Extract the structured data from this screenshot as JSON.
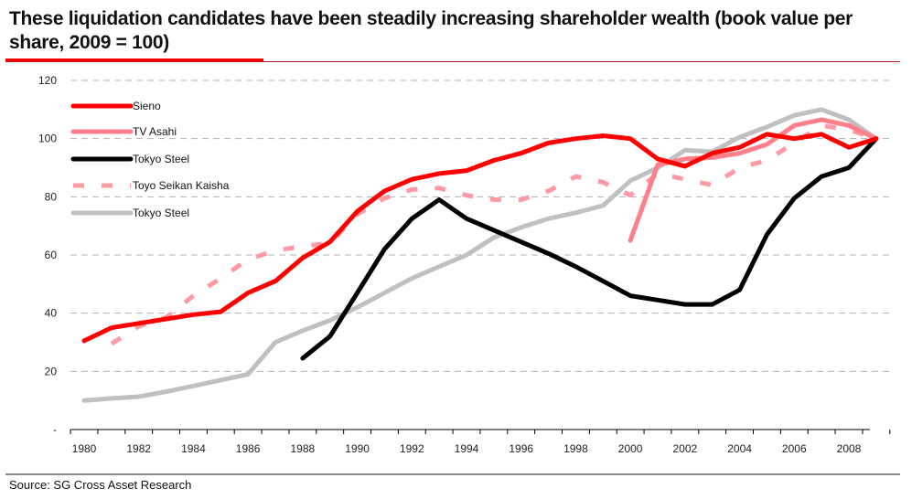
{
  "title": "These liquidation candidates have been steadily increasing shareholder wealth (book value per share, 2009 = 100)",
  "source": "Source: SG Cross Asset Research",
  "chart_data": {
    "type": "line",
    "title": "These liquidation candidates have been steadily increasing shareholder wealth (book value per share, 2009 = 100)",
    "xlabel": "",
    "ylabel": "",
    "xlim": [
      1979.5,
      2009.5
    ],
    "ylim": [
      0,
      120
    ],
    "grid": true,
    "legend_position": "top-left",
    "x_ticks": [
      1980,
      1982,
      1984,
      1986,
      1988,
      1990,
      1992,
      1994,
      1996,
      1998,
      2000,
      2002,
      2004,
      2006,
      2008
    ],
    "x_tick_labels": [
      "1980",
      "1982",
      "1984",
      "1986",
      "1988",
      "1990",
      "1992",
      "1994",
      "1996",
      "1998",
      "2000",
      "2002",
      "2004",
      "2006",
      "2008"
    ],
    "y_ticks": [
      0,
      20,
      40,
      60,
      80,
      100,
      120
    ],
    "y_tick_labels": [
      "-",
      "20",
      "40",
      "60",
      "80",
      "100",
      "120"
    ],
    "series": [
      {
        "name": "Sieno",
        "color": "#ff0000",
        "style": "solid",
        "x": [
          1980,
          1981,
          1982,
          1983,
          1984,
          1985,
          1986,
          1987,
          1988,
          1989,
          1990,
          1991,
          1992,
          1993,
          1994,
          1995,
          1996,
          1997,
          1998,
          1999,
          2000,
          2001,
          2002,
          2003,
          2004,
          2005,
          2006,
          2007,
          2008,
          2009
        ],
        "values": [
          30.5,
          35,
          36.5,
          38,
          39.5,
          40.5,
          47,
          51,
          59,
          64.5,
          75,
          82,
          86,
          88,
          89,
          92.5,
          95,
          98.5,
          100,
          101,
          100,
          93,
          90.5,
          95,
          97,
          101.5,
          100,
          101.5,
          97,
          100
        ]
      },
      {
        "name": "TV Asahi",
        "color": "#ff7f8a",
        "style": "solid",
        "x": [
          2000,
          2001,
          2002,
          2003,
          2004,
          2005,
          2006,
          2007,
          2008,
          2009
        ],
        "values": [
          65,
          91,
          93,
          93.5,
          95,
          98,
          104.5,
          106.5,
          104.5,
          100
        ]
      },
      {
        "name": "Tokyo Steel",
        "color": "#000000",
        "style": "solid",
        "x": [
          1988,
          1989,
          1990,
          1991,
          1992,
          1993,
          1994,
          1995,
          1996,
          1997,
          1998,
          1999,
          2000,
          2001,
          2002,
          2003,
          2004,
          2005,
          2006,
          2007,
          2008,
          2009
        ],
        "values": [
          24.5,
          32,
          47,
          62,
          72.5,
          79,
          72.5,
          68.5,
          64.5,
          60.5,
          56,
          51,
          46,
          44.5,
          43,
          43,
          48,
          67,
          79.5,
          87,
          90,
          100
        ]
      },
      {
        "name": "Toyo Seikan Kaisha",
        "color": "#ff9aa2",
        "style": "dashed",
        "x": [
          1981,
          1982,
          1983,
          1984,
          1985,
          1986,
          1987,
          1988,
          1989,
          1990,
          1991,
          1992,
          1993,
          1994,
          1995,
          1996,
          1997,
          1998,
          1999,
          2000,
          2001,
          2002,
          2003,
          2004,
          2005,
          2006,
          2007,
          2008,
          2009
        ],
        "values": [
          29.5,
          35.5,
          38.5,
          46,
          52,
          58.5,
          61.5,
          63,
          64,
          74,
          79.5,
          82.5,
          83,
          80.5,
          79,
          79,
          82,
          87,
          85,
          80.5,
          88,
          86,
          84,
          90,
          92.5,
          98.5,
          104.5,
          103,
          100
        ]
      },
      {
        "name": "Tokyo Steel",
        "color": "#c0c0c0",
        "style": "solid",
        "x": [
          1980,
          1981,
          1982,
          1983,
          1984,
          1985,
          1986,
          1987,
          1988,
          1989,
          1990,
          1991,
          1992,
          1993,
          1994,
          1995,
          1996,
          1997,
          1998,
          1999,
          2000,
          2001,
          2002,
          2003,
          2004,
          2005,
          2006,
          2007,
          2008,
          2009
        ],
        "values": [
          10,
          10.7,
          11.3,
          13,
          15,
          17,
          19,
          30,
          34,
          37.5,
          42,
          47,
          52,
          56,
          60,
          66,
          69.5,
          72.5,
          74.5,
          77,
          85.5,
          90,
          96,
          95.5,
          100.5,
          104,
          108,
          110,
          106.5,
          100
        ]
      }
    ]
  }
}
